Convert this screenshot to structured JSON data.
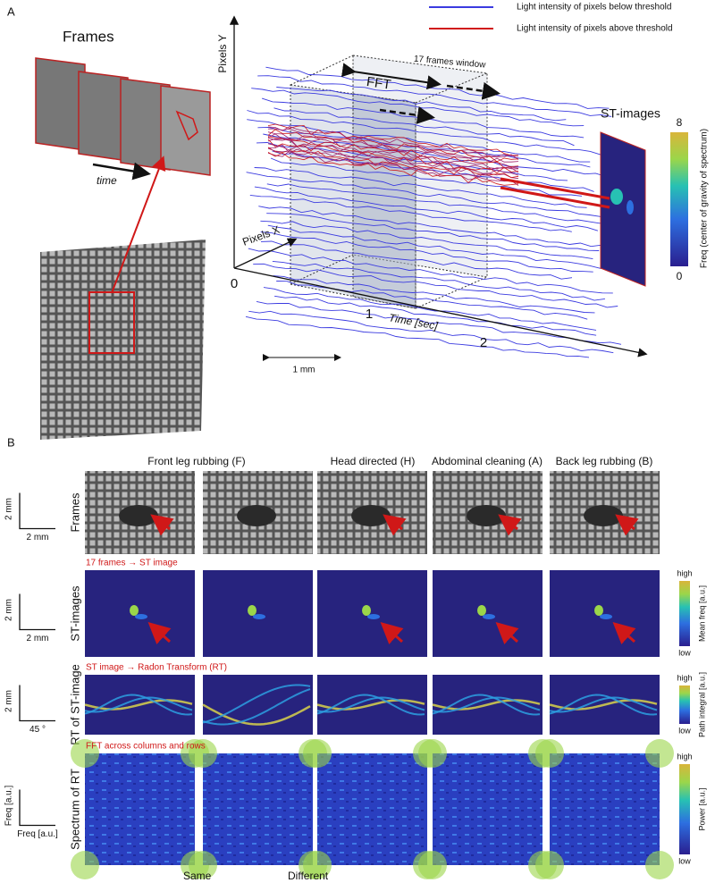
{
  "panel_a": {
    "label": "A",
    "legend": [
      "Light intensity of pixels below threshold",
      "Light intensity of pixels above threshold"
    ],
    "frames_title": "Frames",
    "time_label": "time",
    "axis_y": "Pixels Y",
    "axis_x": "Pixels X",
    "axis_time": "Time [sec]",
    "time_ticks": [
      "0",
      "1",
      "2"
    ],
    "window_label": "17 frames window",
    "fft_label": "FFT",
    "scale_label": "1 mm",
    "st_title": "ST-images",
    "colorbar": {
      "max": "8",
      "min": "0",
      "label": "Freq (center of gravity of spectrum)"
    }
  },
  "panel_b": {
    "label": "B",
    "columns": [
      "Front leg rubbing (F)",
      "Head directed (H)",
      "Abdominal cleaning (A)",
      "Back leg rubbing (B)"
    ],
    "rows": [
      {
        "label": "Frames",
        "scale": [
          "2 mm",
          "2 mm"
        ]
      },
      {
        "label": "ST-images",
        "scale": [
          "2 mm",
          "2 mm"
        ],
        "note": "17 frames → ST image",
        "colorbar": [
          "high",
          "low",
          "Mean freq [a.u.]"
        ]
      },
      {
        "label": "RT of ST-image",
        "scale": [
          "2 mm",
          "45 °"
        ],
        "note": "ST image → Radon Transform (RT)",
        "colorbar": [
          "high",
          "low",
          "Path integral [a.u.]"
        ]
      },
      {
        "label": "Spectrum of RT",
        "scale": [
          "Freq [a.u.]",
          "Freq [a.u.]"
        ],
        "note": "FFT across columns and rows",
        "colorbar": [
          "high",
          "low",
          "Power [a.u.]"
        ]
      }
    ],
    "bottom": [
      "Same",
      "Different"
    ]
  }
}
